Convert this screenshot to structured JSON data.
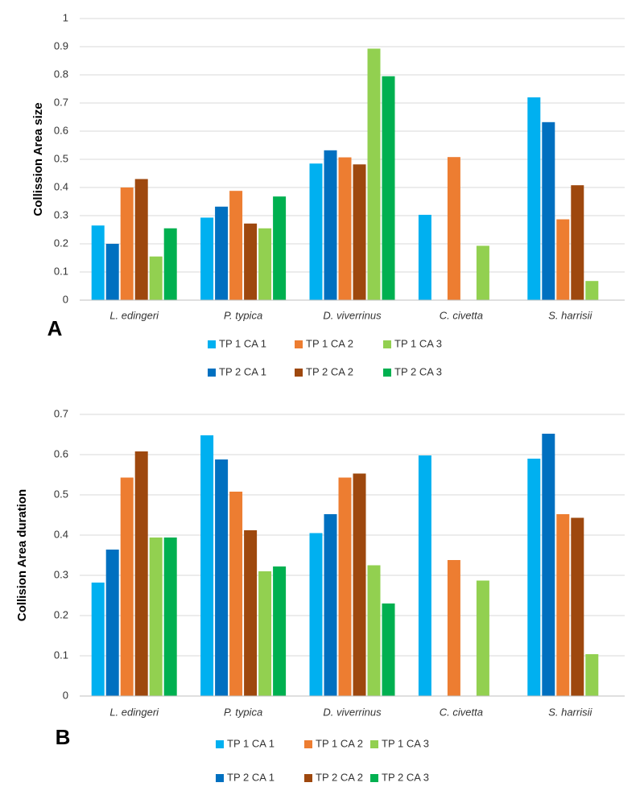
{
  "chart_data": [
    {
      "type": "bar",
      "panel_label": "A",
      "y_label": "Collission Area size",
      "categories": [
        "L. edingeri",
        "P. typica",
        "D. viverrinus",
        "C. civetta",
        "S. harrisii"
      ],
      "series": [
        {
          "name": "TP 1 CA 1",
          "color": "#00b0f0",
          "values": [
            0.265,
            0.293,
            0.485,
            0.303,
            0.72
          ]
        },
        {
          "name": "TP 2 CA 1",
          "color": "#0070c0",
          "values": [
            0.2,
            0.332,
            0.532,
            null,
            0.632
          ]
        },
        {
          "name": "TP 1 CA 2",
          "color": "#ed7d31",
          "values": [
            0.4,
            0.388,
            0.507,
            0.508,
            0.287
          ]
        },
        {
          "name": "TP 2 CA 2",
          "color": "#9e480e",
          "values": [
            0.43,
            0.272,
            0.482,
            null,
            0.408
          ]
        },
        {
          "name": "TP 1 CA 3",
          "color": "#92d050",
          "values": [
            0.155,
            0.255,
            0.893,
            0.193,
            0.068
          ]
        },
        {
          "name": "TP 2 CA 3",
          "color": "#00b050",
          "values": [
            0.255,
            0.368,
            0.795,
            null,
            null
          ]
        }
      ],
      "ylim": [
        0,
        1
      ],
      "yticks": [
        0,
        0.1,
        0.2,
        0.3,
        0.4,
        0.5,
        0.6,
        0.7,
        0.8,
        0.9,
        1
      ],
      "grid": true
    },
    {
      "type": "bar",
      "panel_label": "B",
      "y_label": "Collision Area duration",
      "categories": [
        "L. edingeri",
        "P. typica",
        "D. viverrinus",
        "C. civetta",
        "S. harrisii"
      ],
      "series": [
        {
          "name": "TP 1 CA 1",
          "color": "#00b0f0",
          "values": [
            0.282,
            0.648,
            0.405,
            0.598,
            0.59
          ]
        },
        {
          "name": "TP 2 CA 1",
          "color": "#0070c0",
          "values": [
            0.364,
            0.588,
            0.452,
            null,
            0.652
          ]
        },
        {
          "name": "TP 1 CA 2",
          "color": "#ed7d31",
          "values": [
            0.543,
            0.508,
            0.543,
            0.338,
            0.452
          ]
        },
        {
          "name": "TP 2 CA 2",
          "color": "#9e480e",
          "values": [
            0.608,
            0.412,
            0.553,
            null,
            0.443
          ]
        },
        {
          "name": "TP 1 CA 3",
          "color": "#92d050",
          "values": [
            0.394,
            0.31,
            0.325,
            0.287,
            0.104
          ]
        },
        {
          "name": "TP 2 CA 3",
          "color": "#00b050",
          "values": [
            0.394,
            0.322,
            0.23,
            null,
            null
          ]
        }
      ],
      "ylim": [
        0,
        0.7
      ],
      "yticks": [
        0,
        0.1,
        0.2,
        0.3,
        0.4,
        0.5,
        0.6,
        0.7
      ],
      "grid": true
    }
  ]
}
